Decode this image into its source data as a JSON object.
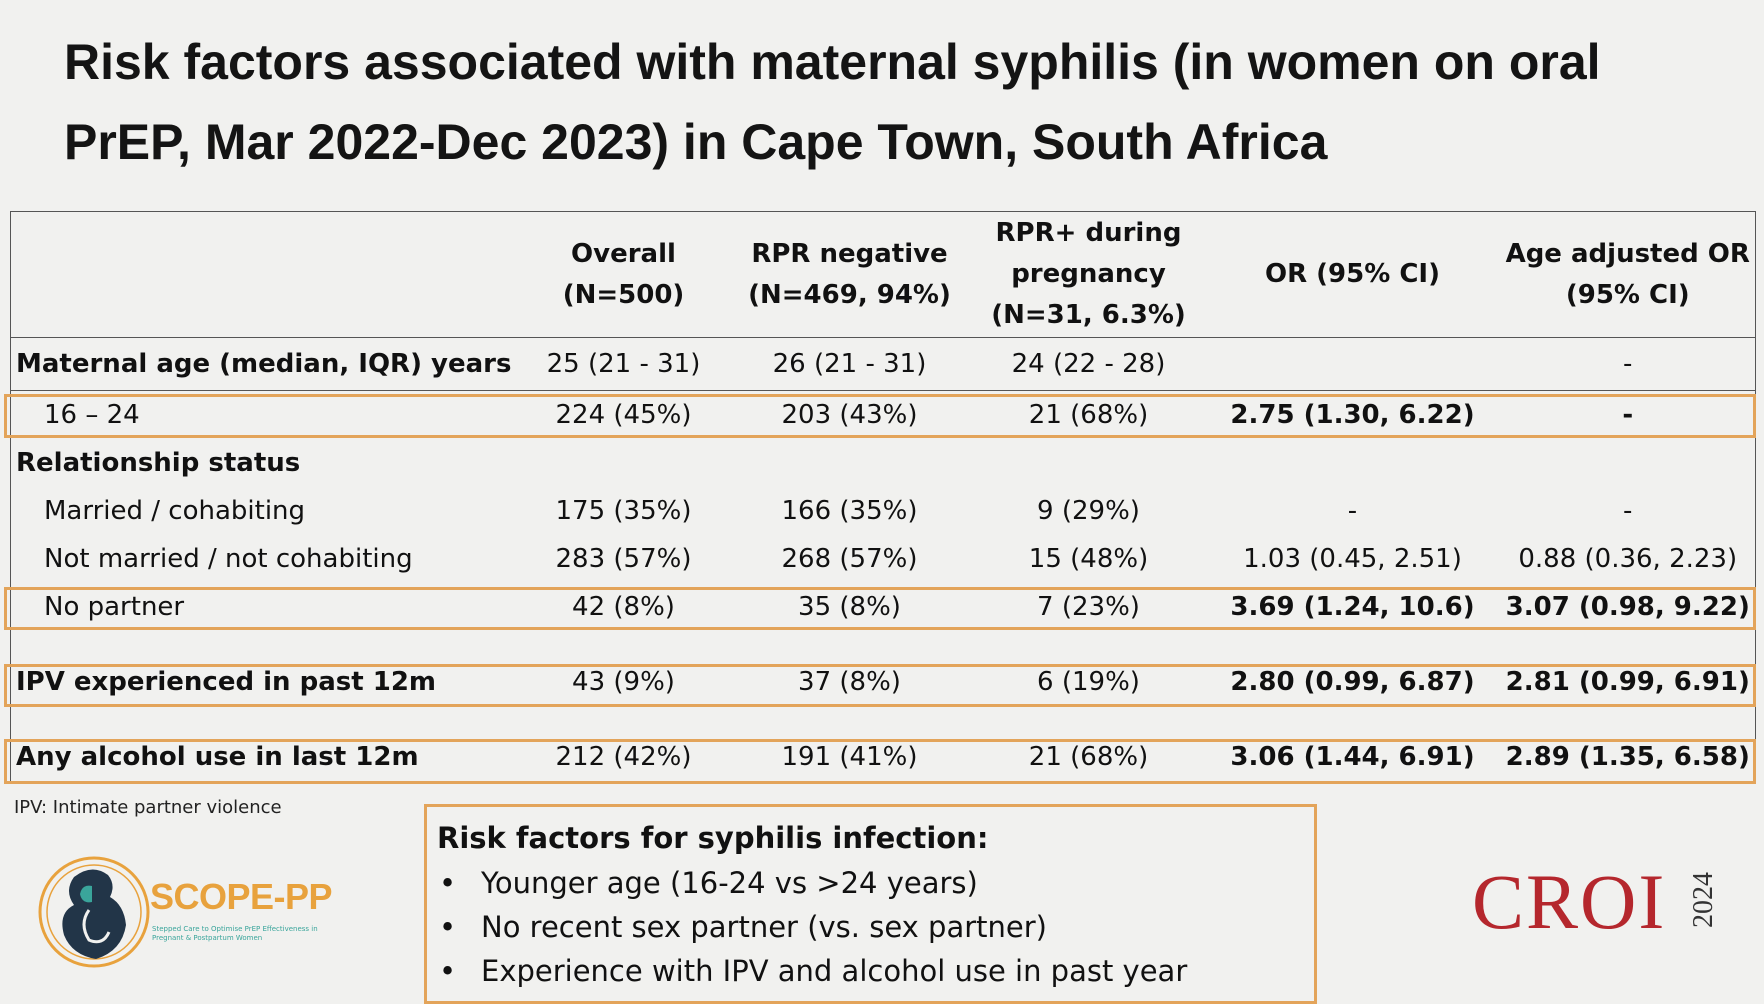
{
  "title": "Risk factors associated with maternal syphilis (in women on oral PrEP, Mar 2022-Dec 2023) in Cape Town, South Africa",
  "table": {
    "headers": [
      "",
      "Overall\n(N=500)",
      "RPR negative\n(N=469, 94%)",
      "RPR+ during\npregnancy\n(N=31, 6.3%)",
      "OR (95% CI)",
      "Age adjusted OR\n(95% CI)"
    ],
    "rows": {
      "age": {
        "label": "Maternal age (median, IQR) years",
        "overall": "25 (21 - 31)",
        "neg": "26 (21 - 31)",
        "pos": "24 (22 - 28)",
        "or": "",
        "aor": "-"
      },
      "age_16_24": {
        "label": "16 – 24",
        "overall": "224 (45%)",
        "neg": "203 (43%)",
        "pos": "21 (68%)",
        "or": "2.75 (1.30, 6.22)",
        "aor": "-"
      },
      "rel": {
        "label": "Relationship status"
      },
      "married": {
        "label": "Married / cohabiting",
        "overall": "175 (35%)",
        "neg": "166 (35%)",
        "pos": "9 (29%)",
        "or": "-",
        "aor": "-"
      },
      "not_married": {
        "label": "Not married / not cohabiting",
        "overall": "283 (57%)",
        "neg": "268 (57%)",
        "pos": "15 (48%)",
        "or": "1.03 (0.45, 2.51)",
        "aor": "0.88 (0.36, 2.23)"
      },
      "no_partner": {
        "label": "No partner",
        "overall": "42 (8%)",
        "neg": "35 (8%)",
        "pos": "7 (23%)",
        "or": "3.69 (1.24, 10.6)",
        "aor": "3.07 (0.98, 9.22)"
      },
      "ipv": {
        "label": "IPV experienced in past 12m",
        "overall": "43 (9%)",
        "neg": "37 (8%)",
        "pos": "6 (19%)",
        "or": "2.80 (0.99, 6.87)",
        "aor": "2.81 (0.99, 6.91)"
      },
      "alcohol": {
        "label": "Any alcohol use in last 12m",
        "overall": "212 (42%)",
        "neg": "191 (41%)",
        "pos": "21 (68%)",
        "or": "3.06 (1.44, 6.91)",
        "aor": "2.89 (1.35, 6.58)"
      }
    }
  },
  "footnote": "IPV: Intimate partner violence",
  "summary": {
    "heading": "Risk factors for syphilis infection:",
    "bullet": "•",
    "items": [
      "Younger age (16-24 vs >24 years)",
      "No recent sex partner (vs. sex partner)",
      "Experience with IPV and alcohol use in past year"
    ]
  },
  "logos": {
    "scope_name": "SCOPE-PP",
    "scope_tagline": "Stepped Care to Optimise PrEP Effectiveness in Pregnant & Postpartum Women",
    "croi": "CROI",
    "croi_year": "2024"
  },
  "colors": {
    "highlight_border": "#e3a45a",
    "croi_red": "#b5272d",
    "scope_orange": "#e8a23d",
    "scope_teal": "#3aa59b"
  }
}
